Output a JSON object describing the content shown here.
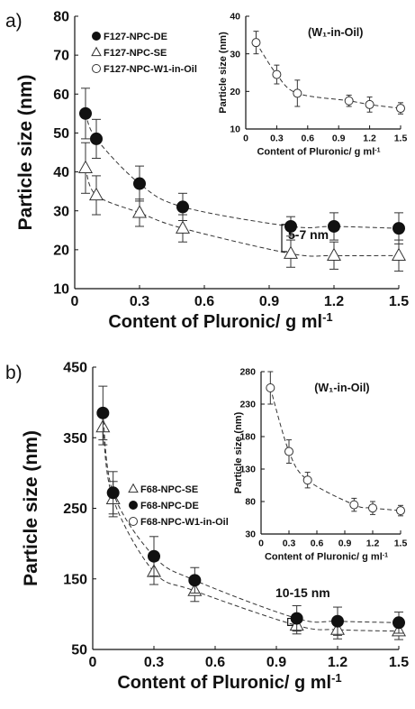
{
  "chart_data": [
    {
      "panel": "a)",
      "type": "scatter",
      "xlabel": "Content of Pluronic/ g ml",
      "xlabel_sup": "-1",
      "ylabel": "Particle size (nm)",
      "xlim": [
        0,
        1.5
      ],
      "ylim": [
        10,
        80
      ],
      "xticks": [
        "0",
        "0.3",
        "0.6",
        "0.9",
        "1.2",
        "1.5"
      ],
      "yticks": [
        "10",
        "20",
        "30",
        "40",
        "50",
        "60",
        "70",
        "80"
      ],
      "legend_placement": "top-left",
      "series": [
        {
          "name": "F127-NPC-DE",
          "marker": "filled-circle",
          "x": [
            0.05,
            0.1,
            0.3,
            0.5,
            1.0,
            1.2,
            1.5
          ],
          "y": [
            55,
            48.5,
            37,
            31,
            26,
            26,
            25.5
          ],
          "err": [
            6.5,
            5,
            4.5,
            3.5,
            2.5,
            3.5,
            4
          ]
        },
        {
          "name": "F127-NPC-SE",
          "marker": "open-triangle",
          "x": [
            0.05,
            0.1,
            0.3,
            0.5,
            1.0,
            1.2,
            1.5
          ],
          "y": [
            41,
            34,
            29.5,
            25.5,
            19,
            18.5,
            18.5
          ],
          "err": [
            6.5,
            5,
            3.5,
            3.5,
            3.5,
            3.5,
            4
          ]
        },
        {
          "name": "F127-NPC-W1-in-Oil",
          "marker": "open-circle",
          "x": [],
          "y": []
        }
      ],
      "annotation": "5-7 nm",
      "inset": {
        "title": "(W₁-in-Oil)",
        "xlabel": "Content of Pluronic/ g ml",
        "xlabel_sup": "-1",
        "ylabel": "Particle size (nm)",
        "xlim": [
          0,
          1.5
        ],
        "ylim": [
          10,
          40
        ],
        "xticks": [
          "0",
          "0.3",
          "0.6",
          "0.9",
          "1.2",
          "1.5"
        ],
        "yticks": [
          "10",
          "20",
          "30",
          "40"
        ],
        "series": [
          {
            "name": "F127-NPC-W1-in-Oil",
            "marker": "open-circle",
            "x": [
              0.1,
              0.3,
              0.5,
              1.0,
              1.2,
              1.5
            ],
            "y": [
              33,
              24.5,
              19.5,
              17.5,
              16.5,
              15.5
            ],
            "err": [
              3,
              2.5,
              3.5,
              1.5,
              2,
              1.5
            ]
          }
        ]
      }
    },
    {
      "panel": "b)",
      "type": "scatter",
      "xlabel": "Content of Pluronic/ g ml",
      "xlabel_sup": "-1",
      "ylabel": "Particle size (nm)",
      "xlim": [
        0,
        1.5
      ],
      "ylim": [
        50,
        450
      ],
      "xticks": [
        "0",
        "0.3",
        "0.6",
        "0.9",
        "1.2",
        "1.5"
      ],
      "yticks": [
        "50",
        "150",
        "250",
        "350",
        "450"
      ],
      "legend_placement": "middle-left",
      "series": [
        {
          "name": "F68-NPC-SE",
          "marker": "open-triangle",
          "x": [
            0.05,
            0.1,
            0.3,
            0.5,
            1.0,
            1.2,
            1.5
          ],
          "y": [
            365,
            263,
            160,
            133,
            84,
            78,
            76
          ],
          "err": [
            25,
            25,
            18,
            15,
            12,
            13,
            12
          ]
        },
        {
          "name": "F68-NPC-DE",
          "marker": "filled-circle",
          "x": [
            0.05,
            0.1,
            0.3,
            0.5,
            1.0,
            1.2,
            1.5
          ],
          "y": [
            385,
            272,
            182,
            148,
            94,
            90,
            88
          ],
          "err": [
            38,
            30,
            28,
            18,
            18,
            20,
            15
          ]
        },
        {
          "name": "F68-NPC-W1-in-Oil",
          "marker": "open-circle",
          "x": [],
          "y": []
        }
      ],
      "annotation": "10-15 nm",
      "inset": {
        "title": "(W₁-in-Oil)",
        "xlabel": "Content of Pluronic/ g ml",
        "xlabel_sup": "-1",
        "ylabel": "Particle size (nm)",
        "xlim": [
          0,
          1.5
        ],
        "ylim": [
          30,
          280
        ],
        "xticks": [
          "0",
          "0.3",
          "0.6",
          "0.9",
          "1.2",
          "1.5"
        ],
        "yticks": [
          "30",
          "80",
          "130",
          "180",
          "230",
          "280"
        ],
        "series": [
          {
            "name": "F68-NPC-W1-in-Oil",
            "marker": "open-circle",
            "x": [
              0.1,
              0.3,
              0.5,
              1.0,
              1.2,
              1.5
            ],
            "y": [
              255,
              157,
              113,
              75,
              70,
              66
            ],
            "err": [
              25,
              18,
              12,
              10,
              10,
              8
            ]
          }
        ]
      }
    }
  ]
}
